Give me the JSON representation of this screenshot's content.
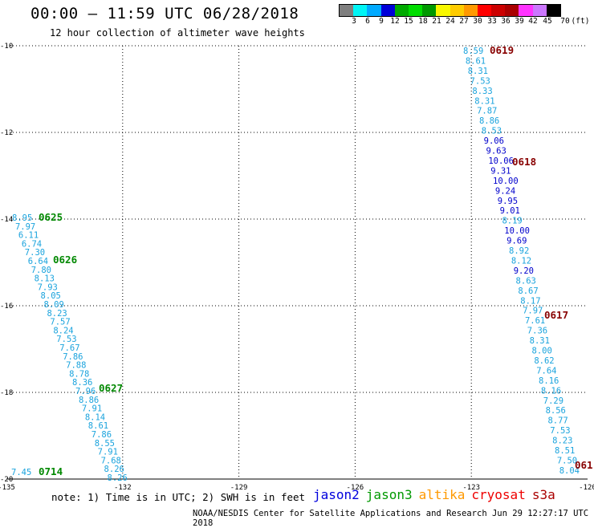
{
  "header": {
    "title": "00:00 – 11:59 UTC 06/28/2018",
    "subtitle": "12 hour collection of altimeter wave heights"
  },
  "colorbar": {
    "colors": [
      "#7f7f7f",
      "#00f5f5",
      "#00aaff",
      "#0000d8",
      "#00aa00",
      "#00dd00",
      "#009900",
      "#f8f800",
      "#ffcc00",
      "#ff9900",
      "#ff0000",
      "#cc0000",
      "#aa0000",
      "#ff33ff",
      "#cc77ff",
      "#000000"
    ],
    "tick_labels": [
      "3",
      "6",
      "9",
      "12",
      "15",
      "18",
      "21",
      "24",
      "27",
      "30",
      "33",
      "36",
      "39",
      "42",
      "45",
      "70",
      "(ft)"
    ]
  },
  "axes": {
    "x_ticks": [
      "-135",
      "-132",
      "-129",
      "-126",
      "-123",
      "-120"
    ],
    "y_ticks": [
      "-10",
      "-12",
      "-14",
      "-16",
      "-18",
      "-20"
    ]
  },
  "tracks": [
    {
      "satellite": "jason3",
      "label_color": "#00aaff",
      "values": [
        "8.95",
        "7.97",
        "6.11",
        "6.74",
        "7.30",
        "6.64",
        "7.80",
        "8.13",
        "7.93",
        "8.05",
        "8.09",
        "8.23",
        "7.57",
        "8.24",
        "7.53",
        "7.67",
        "7.86",
        "7.88",
        "8.78",
        "8.36",
        "7.96",
        "8.86",
        "7.91",
        "8.14",
        "8.61",
        "7.86",
        "8.55",
        "7.91",
        "7.68",
        "8.26",
        "8.26"
      ]
    },
    {
      "satellite": "jason3",
      "label_color": "#00aaff",
      "values": [
        "7.45"
      ]
    },
    {
      "satellite": "cryosat",
      "label_color": "mixed",
      "values": [
        "8.59",
        "8.61",
        "8.31",
        "7.53",
        "8.33",
        "8.31",
        "7.87",
        "8.86",
        "8.53",
        "9.06",
        "9.63",
        "10.06",
        "9.31",
        "10.00",
        "9.24",
        "9.95",
        "9.01",
        "8.19",
        "10.00",
        "9.69",
        "8.92",
        "8.12",
        "9.20",
        "8.63",
        "8.67",
        "8.17",
        "7.97",
        "7.61",
        "7.36",
        "8.31",
        "8.00",
        "8.62",
        "7.64",
        "8.16",
        "8.16",
        "7.29",
        "8.56",
        "8.77",
        "7.53",
        "8.23",
        "8.51",
        "7.50",
        "8.04"
      ],
      "highlight_values": [
        "9.06",
        "9.63",
        "10.06",
        "9.31",
        "10.00",
        "9.24",
        "9.95",
        "9.01",
        "10.00",
        "9.69",
        "9.20"
      ]
    }
  ],
  "time_labels": [
    {
      "text": "0625",
      "color": "#008800"
    },
    {
      "text": "0626",
      "color": "#008800"
    },
    {
      "text": "0627",
      "color": "#008800"
    },
    {
      "text": "0714",
      "color": "#008800"
    },
    {
      "text": "0619",
      "color": "#880000"
    },
    {
      "text": "0618",
      "color": "#880000"
    },
    {
      "text": "0617",
      "color": "#880000"
    },
    {
      "text": "061",
      "color": "#880000"
    }
  ],
  "note": "note: 1) Time is in UTC; 2) SWH is in feet",
  "legend": [
    {
      "name": "jason2",
      "color": "#0000dd"
    },
    {
      "name": "jason3",
      "color": "#009900"
    },
    {
      "name": "altika",
      "color": "#ff9900"
    },
    {
      "name": "cryosat",
      "color": "#ee0000"
    },
    {
      "name": "s3a",
      "color": "#aa0000"
    }
  ],
  "credit": "NOAA/NESDIS Center for Satellite Applications and Research   Jun 29 12:27:17 UTC 2018",
  "colors": {
    "track_light": "#1aa3dd",
    "track_dark": "#0000cc",
    "grid": "#000000"
  }
}
